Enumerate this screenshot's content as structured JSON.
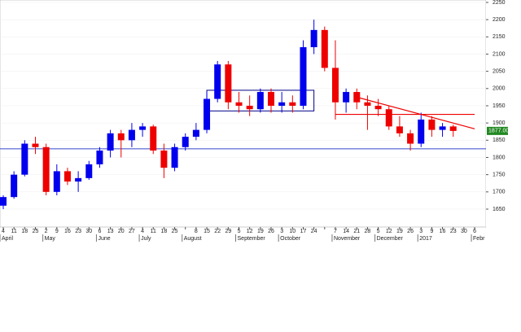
{
  "chart_data": {
    "type": "candlestick",
    "categories": [
      "4",
      "11",
      "18",
      "25",
      "2",
      "9",
      "16",
      "23",
      "30",
      "6",
      "13",
      "20",
      "27",
      "4",
      "11",
      "18",
      "25",
      null,
      "8",
      "15",
      "22",
      "29",
      "5",
      "12",
      "19",
      "26",
      "3",
      "10",
      "17",
      "24",
      null,
      "7",
      "14",
      "21",
      "28",
      "5",
      "12",
      "19",
      "26",
      "3",
      "9",
      "16",
      "23",
      "30",
      "6"
    ],
    "months": [
      {
        "label": "April",
        "at": 0
      },
      {
        "label": "May",
        "at": 4
      },
      {
        "label": "June",
        "at": 9
      },
      {
        "label": "July",
        "at": 13
      },
      {
        "label": "August",
        "at": 17
      },
      {
        "label": "September",
        "at": 22
      },
      {
        "label": "October",
        "at": 26
      },
      {
        "label": "November",
        "at": 31
      },
      {
        "label": "December",
        "at": 35
      },
      {
        "label": "2017",
        "at": 39
      },
      {
        "label": "Febr",
        "at": 44
      }
    ],
    "open": [
      1660,
      1685,
      1750,
      1840,
      1830,
      1700,
      1760,
      1730,
      1740,
      1780,
      1820,
      1870,
      1850,
      1880,
      1890,
      1820,
      1770,
      1830,
      1860,
      1880,
      1970,
      2070,
      1960,
      1950,
      1940,
      1990,
      1950,
      1960,
      1950,
      2120,
      2170,
      2060,
      1960,
      1990,
      1960,
      1950,
      1940,
      1890,
      1870,
      1840,
      1910,
      1880,
      1890,
      null,
      null
    ],
    "high": [
      1690,
      1760,
      1850,
      1860,
      1840,
      1780,
      1770,
      1760,
      1790,
      1830,
      1880,
      1880,
      1900,
      1900,
      1895,
      1840,
      1840,
      1870,
      1900,
      1990,
      2080,
      2080,
      1990,
      1980,
      2000,
      2000,
      1990,
      1980,
      2140,
      2200,
      2180,
      2140,
      2000,
      2000,
      1980,
      1970,
      1950,
      1920,
      1880,
      1930,
      1920,
      1900,
      1895,
      null,
      null
    ],
    "low": [
      1650,
      1680,
      1745,
      1810,
      1690,
      1690,
      1720,
      1700,
      1735,
      1770,
      1800,
      1800,
      1830,
      1860,
      1810,
      1740,
      1760,
      1820,
      1850,
      1870,
      1960,
      1940,
      1930,
      1920,
      1930,
      1930,
      1930,
      1930,
      1940,
      2100,
      2050,
      1910,
      1930,
      1940,
      1880,
      1920,
      1880,
      1860,
      1820,
      1830,
      1860,
      1860,
      1860,
      null,
      null
    ],
    "close": [
      1685,
      1750,
      1840,
      1830,
      1700,
      1760,
      1730,
      1740,
      1780,
      1820,
      1870,
      1850,
      1880,
      1890,
      1820,
      1770,
      1830,
      1860,
      1880,
      1970,
      2070,
      1960,
      1950,
      1940,
      1990,
      1950,
      1960,
      1950,
      2120,
      2170,
      2060,
      1960,
      1990,
      1960,
      1950,
      1940,
      1890,
      1870,
      1840,
      1910,
      1880,
      1890,
      1877,
      null,
      null
    ],
    "up_color": "#0000ee",
    "down_color": "#ee0000",
    "ylim": [
      1598,
      2257
    ],
    "yticks": [
      1650,
      1700,
      1750,
      1800,
      1850,
      1900,
      1950,
      2000,
      2050,
      2100,
      2150,
      2200,
      2250
    ],
    "support": {
      "value": 1825,
      "color": "#3344cc"
    },
    "resistance": {
      "value": 1925,
      "from": 31,
      "to": 44,
      "color": "#ee0000"
    },
    "trend": {
      "from": [
        33,
        1975
      ],
      "to": [
        44,
        1883
      ],
      "color": "#ee0000"
    },
    "box": {
      "from": 19,
      "to": 29,
      "low": 1935,
      "high": 1995,
      "color": "#000088"
    },
    "last": {
      "value": 1877,
      "label": "1877.00"
    }
  }
}
